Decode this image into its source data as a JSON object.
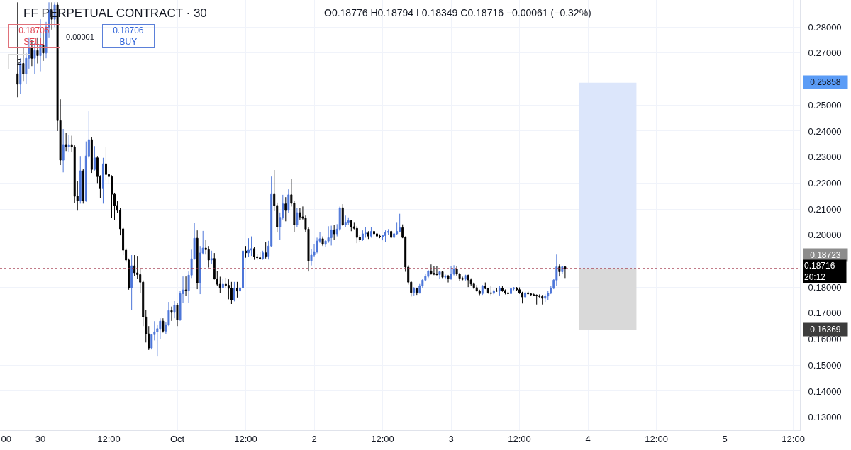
{
  "chart_data": {
    "type": "candlestick",
    "title": "FF PERPETUAL CONTRACT · 30",
    "annotations": [
      "O0.18776 H0.18794 L0.18349 C0.18716 −0.00061 (−0.32%)",
      "0.18705\nSELL",
      "0.00001",
      "0.18706\nBUY",
      "2",
      "0.25858",
      "0.18723",
      "0.16369"
    ],
    "x": [
      "--09-29T20:00",
      "--09-29T20:30",
      "--09-29T21:00",
      "--09-29T21:30",
      "--09-29T22:00",
      "--09-29T22:30",
      "--09-29T23:00",
      "--09-29T23:30",
      "--09-30T00:00",
      "--09-30T00:30",
      "--09-30T01:00",
      "--09-30T01:30",
      "--09-30T02:00",
      "--09-30T02:30",
      "--09-30T03:00",
      "--09-30T03:30",
      "--09-30T04:00",
      "--09-30T04:30",
      "--09-30T05:00",
      "--09-30T05:30",
      "--09-30T06:00",
      "--09-30T06:30",
      "--09-30T07:00",
      "--09-30T07:30",
      "--09-30T08:00",
      "--09-30T08:30",
      "--09-30T09:00",
      "--09-30T09:30",
      "--09-30T10:00",
      "--09-30T10:30",
      "--09-30T11:00",
      "--09-30T11:30",
      "--09-30T12:00",
      "--09-30T12:30",
      "--09-30T13:00",
      "--09-30T13:30",
      "--09-30T14:00",
      "--09-30T14:30",
      "--09-30T15:00",
      "--09-30T15:30",
      "--09-30T16:00",
      "--09-30T16:30",
      "--09-30T17:00",
      "--09-30T17:30",
      "--09-30T18:00",
      "--09-30T18:30",
      "--09-30T19:00",
      "--09-30T19:30",
      "--09-30T20:00",
      "--09-30T20:30",
      "--09-30T21:00",
      "--09-30T21:30",
      "--09-30T22:00",
      "--09-30T22:30",
      "--09-30T23:00",
      "--09-30T23:30",
      "--10-01T00:00",
      "--10-01T00:30",
      "--10-01T01:00",
      "--10-01T01:30",
      "--10-01T02:00",
      "--10-01T02:30",
      "--10-01T03:00",
      "--10-01T03:30",
      "--10-01T04:00",
      "--10-01T04:30",
      "--10-01T05:00",
      "--10-01T05:30",
      "--10-01T06:00",
      "--10-01T06:30",
      "--10-01T07:00",
      "--10-01T07:30",
      "--10-01T08:00",
      "--10-01T08:30",
      "--10-01T09:00",
      "--10-01T09:30",
      "--10-01T10:00",
      "--10-01T10:30",
      "--10-01T11:00",
      "--10-01T11:30",
      "--10-01T12:00",
      "--10-01T12:30",
      "--10-01T13:00",
      "--10-01T13:30",
      "--10-01T14:00",
      "--10-01T14:30",
      "--10-01T15:00",
      "--10-01T15:30",
      "--10-01T16:00",
      "--10-01T16:30",
      "--10-01T17:00",
      "--10-01T17:30",
      "--10-01T18:00",
      "--10-01T18:30",
      "--10-01T19:00",
      "--10-01T19:30",
      "--10-01T20:00",
      "--10-01T20:30",
      "--10-01T21:00",
      "--10-01T21:30",
      "--10-01T22:00",
      "--10-01T22:30",
      "--10-01T23:00",
      "--10-01T23:30",
      "--10-02T00:00",
      "--10-02T00:30",
      "--10-02T01:00",
      "--10-02T01:30",
      "--10-02T02:00",
      "--10-02T02:30",
      "--10-02T03:00",
      "--10-02T03:30",
      "--10-02T04:00",
      "--10-02T04:30",
      "--10-02T05:00",
      "--10-02T05:30",
      "--10-02T06:00",
      "--10-02T06:30",
      "--10-02T07:00",
      "--10-02T07:30",
      "--10-02T08:00",
      "--10-02T08:30",
      "--10-02T09:00",
      "--10-02T09:30",
      "--10-02T10:00",
      "--10-02T10:30",
      "--10-02T11:00",
      "--10-02T11:30",
      "--10-02T12:00",
      "--10-02T12:30",
      "--10-02T13:00",
      "--10-02T13:30",
      "--10-02T14:00",
      "--10-02T14:30",
      "--10-02T15:00",
      "--10-02T15:30",
      "--10-02T16:00",
      "--10-02T16:30",
      "--10-02T17:00",
      "--10-02T17:30",
      "--10-02T18:00",
      "--10-02T18:30",
      "--10-02T19:00",
      "--10-02T19:30",
      "--10-02T20:00",
      "--10-02T20:30",
      "--10-02T21:00",
      "--10-02T21:30",
      "--10-02T22:00",
      "--10-02T22:30",
      "--10-02T23:00",
      "--10-02T23:30",
      "--10-03T00:00",
      "--10-03T00:30",
      "--10-03T01:00",
      "--10-03T01:30",
      "--10-03T02:00",
      "--10-03T02:30",
      "--10-03T03:00",
      "--10-03T03:30",
      "--10-03T04:00",
      "--10-03T04:30",
      "--10-03T05:00",
      "--10-03T05:30",
      "--10-03T06:00",
      "--10-03T06:30",
      "--10-03T07:00",
      "--10-03T07:30",
      "--10-03T08:00",
      "--10-03T08:30",
      "--10-03T09:00",
      "--10-03T09:30",
      "--10-03T10:00",
      "--10-03T10:30",
      "--10-03T11:00",
      "--10-03T11:30",
      "--10-03T12:00",
      "--10-03T12:30",
      "--10-03T13:00",
      "--10-03T13:30",
      "--10-03T14:00",
      "--10-03T14:30",
      "--10-03T15:00",
      "--10-03T15:30",
      "--10-03T16:00",
      "--10-03T16:30",
      "--10-03T17:00",
      "--10-03T17:30",
      "--10-03T18:00",
      "--10-03T18:30",
      "--10-03T19:00",
      "--10-03T19:30",
      "--10-03T20:00"
    ],
    "ohlc": [
      [
        0.262,
        0.2895,
        0.253,
        0.258
      ],
      [
        0.258,
        0.268,
        0.2544,
        0.266
      ],
      [
        0.266,
        0.272,
        0.259,
        0.262
      ],
      [
        0.262,
        0.27,
        0.258,
        0.268
      ],
      [
        0.268,
        0.276,
        0.264,
        0.272
      ],
      [
        0.272,
        0.275,
        0.265,
        0.268
      ],
      [
        0.268,
        0.274,
        0.262,
        0.271
      ],
      [
        0.271,
        0.276,
        0.266,
        0.269
      ],
      [
        0.269,
        0.283,
        0.263,
        0.273
      ],
      [
        0.273,
        0.278,
        0.267,
        0.27
      ],
      [
        0.27,
        0.282,
        0.268,
        0.28
      ],
      [
        0.28,
        0.2895,
        0.276,
        0.2865
      ],
      [
        0.2865,
        0.2895,
        0.279,
        0.283
      ],
      [
        0.283,
        0.2895,
        0.28,
        0.2885
      ],
      [
        0.2885,
        0.2895,
        0.24,
        0.244
      ],
      [
        0.244,
        0.2522,
        0.2269,
        0.2288
      ],
      [
        0.2288,
        0.2408,
        0.2241,
        0.2348
      ],
      [
        0.2348,
        0.2392,
        0.2323,
        0.234
      ],
      [
        0.234,
        0.2385,
        0.2318,
        0.2348
      ],
      [
        0.2348,
        0.2382,
        0.2318,
        0.2339
      ],
      [
        0.2339,
        0.2345,
        0.2124,
        0.2149
      ],
      [
        0.2149,
        0.2209,
        0.2094,
        0.2133
      ],
      [
        0.2133,
        0.2304,
        0.2121,
        0.2247
      ],
      [
        0.2247,
        0.2254,
        0.2121,
        0.2133
      ],
      [
        0.2133,
        0.236,
        0.2128,
        0.2304
      ],
      [
        0.2304,
        0.2476,
        0.2295,
        0.2367
      ],
      [
        0.2367,
        0.2378,
        0.2239,
        0.2252
      ],
      [
        0.2252,
        0.2342,
        0.2248,
        0.2297
      ],
      [
        0.2297,
        0.2304,
        0.22,
        0.2225
      ],
      [
        0.2225,
        0.223,
        0.2141,
        0.2181
      ],
      [
        0.2181,
        0.2297,
        0.2121,
        0.2274
      ],
      [
        0.2274,
        0.234,
        0.2211,
        0.2233
      ],
      [
        0.2233,
        0.2265,
        0.2196,
        0.2225
      ],
      [
        0.2225,
        0.223,
        0.2067,
        0.2157
      ],
      [
        0.2157,
        0.2163,
        0.2058,
        0.2114
      ],
      [
        0.2114,
        0.213,
        0.2085,
        0.2095
      ],
      [
        0.2095,
        0.2103,
        0.1999,
        0.2024
      ],
      [
        0.2024,
        0.2031,
        0.1923,
        0.1942
      ],
      [
        0.1942,
        0.195,
        0.1895,
        0.1904
      ],
      [
        0.1904,
        0.191,
        0.179,
        0.1798
      ],
      [
        0.1798,
        0.1923,
        0.1713,
        0.1882
      ],
      [
        0.1882,
        0.1923,
        0.1842,
        0.1855
      ],
      [
        0.1855,
        0.192,
        0.1833,
        0.1848
      ],
      [
        0.1848,
        0.187,
        0.1778,
        0.1819
      ],
      [
        0.1819,
        0.1826,
        0.165,
        0.1685
      ],
      [
        0.1685,
        0.1713,
        0.1587,
        0.162
      ],
      [
        0.162,
        0.165,
        0.1558,
        0.1566
      ],
      [
        0.1566,
        0.162,
        0.156,
        0.1617
      ],
      [
        0.1617,
        0.1669,
        0.1595,
        0.1628
      ],
      [
        0.1628,
        0.1655,
        0.1533,
        0.164
      ],
      [
        0.164,
        0.168,
        0.16,
        0.1669
      ],
      [
        0.1669,
        0.168,
        0.1625,
        0.1631
      ],
      [
        0.1631,
        0.1664,
        0.162,
        0.1655
      ],
      [
        0.1655,
        0.1743,
        0.165,
        0.171
      ],
      [
        0.171,
        0.1725,
        0.167,
        0.1705
      ],
      [
        0.1705,
        0.1746,
        0.168,
        0.1731
      ],
      [
        0.1731,
        0.174,
        0.165,
        0.1674
      ],
      [
        0.1674,
        0.1786,
        0.167,
        0.1775
      ],
      [
        0.1775,
        0.1841,
        0.174,
        0.1789
      ],
      [
        0.1789,
        0.1841,
        0.1765,
        0.1786
      ],
      [
        0.1786,
        0.186,
        0.174,
        0.1846
      ],
      [
        0.1846,
        0.1944,
        0.1835,
        0.1909
      ],
      [
        0.1909,
        0.2048,
        0.1905,
        0.1988
      ],
      [
        0.1988,
        0.2018,
        0.1792,
        0.1816
      ],
      [
        0.1816,
        0.1958,
        0.1773,
        0.1931
      ],
      [
        0.1931,
        0.2016,
        0.1925,
        0.195
      ],
      [
        0.195,
        0.1983,
        0.1925,
        0.1944
      ],
      [
        0.1944,
        0.1958,
        0.1875,
        0.1904
      ],
      [
        0.1904,
        0.194,
        0.189,
        0.191
      ],
      [
        0.191,
        0.1931,
        0.1829,
        0.1832
      ],
      [
        0.1832,
        0.1862,
        0.1805,
        0.1811
      ],
      [
        0.1811,
        0.184,
        0.1778,
        0.1797
      ],
      [
        0.1797,
        0.1832,
        0.1795,
        0.1811
      ],
      [
        0.1811,
        0.1836,
        0.1795,
        0.1807
      ],
      [
        0.1807,
        0.183,
        0.1753,
        0.1795
      ],
      [
        0.1795,
        0.182,
        0.1735,
        0.1751
      ],
      [
        0.1751,
        0.182,
        0.1745,
        0.1795
      ],
      [
        0.1795,
        0.182,
        0.176,
        0.1785
      ],
      [
        0.1785,
        0.1815,
        0.175,
        0.1797
      ],
      [
        0.1797,
        0.1988,
        0.1792,
        0.1939
      ],
      [
        0.1939,
        0.1958,
        0.1913,
        0.1932
      ],
      [
        0.1932,
        0.1988,
        0.1915,
        0.1942
      ],
      [
        0.1942,
        0.1995,
        0.192,
        0.1948
      ],
      [
        0.1948,
        0.1953,
        0.1905,
        0.1917
      ],
      [
        0.1917,
        0.1927,
        0.1905,
        0.1913
      ],
      [
        0.1913,
        0.1935,
        0.1905,
        0.1908
      ],
      [
        0.1908,
        0.194,
        0.1905,
        0.1932
      ],
      [
        0.1932,
        0.1972,
        0.191,
        0.1919
      ],
      [
        0.1919,
        0.1978,
        0.1906,
        0.1958
      ],
      [
        0.1958,
        0.2225,
        0.1955,
        0.2157
      ],
      [
        0.2157,
        0.225,
        0.2092,
        0.2114
      ],
      [
        0.2114,
        0.2125,
        0.201,
        0.2032
      ],
      [
        0.2032,
        0.2087,
        0.1983,
        0.2068
      ],
      [
        0.2068,
        0.2155,
        0.206,
        0.212
      ],
      [
        0.212,
        0.2146,
        0.2053,
        0.2095
      ],
      [
        0.2095,
        0.2176,
        0.2085,
        0.2155
      ],
      [
        0.2155,
        0.2217,
        0.211,
        0.2122
      ],
      [
        0.2122,
        0.213,
        0.2013,
        0.204
      ],
      [
        0.204,
        0.2104,
        0.203,
        0.2086
      ],
      [
        0.2086,
        0.2104,
        0.2058,
        0.207
      ],
      [
        0.207,
        0.211,
        0.206,
        0.2065
      ],
      [
        0.2065,
        0.2075,
        0.2013,
        0.2023
      ],
      [
        0.2023,
        0.203,
        0.186,
        0.1901
      ],
      [
        0.1901,
        0.1945,
        0.1883,
        0.1923
      ],
      [
        0.1923,
        0.1965,
        0.1915,
        0.1936
      ],
      [
        0.1936,
        0.199,
        0.193,
        0.1977
      ],
      [
        0.1977,
        0.2013,
        0.197,
        0.1986
      ],
      [
        0.1986,
        0.1995,
        0.1958,
        0.1964
      ],
      [
        0.1964,
        0.1982,
        0.1955,
        0.1977
      ],
      [
        0.1977,
        0.2034,
        0.197,
        0.199
      ],
      [
        0.199,
        0.2036,
        0.196,
        0.202
      ],
      [
        0.202,
        0.204,
        0.1983,
        0.2005
      ],
      [
        0.2005,
        0.2042,
        0.1995,
        0.2023
      ],
      [
        0.2023,
        0.211,
        0.2015,
        0.2105
      ],
      [
        0.2105,
        0.2119,
        0.2035,
        0.204
      ],
      [
        0.204,
        0.2075,
        0.2032,
        0.205
      ],
      [
        0.205,
        0.2068,
        0.204,
        0.2055
      ],
      [
        0.2055,
        0.2058,
        0.2015,
        0.2032
      ],
      [
        0.2032,
        0.205,
        0.2022,
        0.2026
      ],
      [
        0.2026,
        0.2035,
        0.1969,
        0.1991
      ],
      [
        0.1991,
        0.2,
        0.1975,
        0.1982
      ],
      [
        0.1982,
        0.2018,
        0.1978,
        0.2005
      ],
      [
        0.2005,
        0.203,
        0.199,
        0.2008
      ],
      [
        0.2008,
        0.2015,
        0.1985,
        0.1996
      ],
      [
        0.1996,
        0.2032,
        0.199,
        0.2014
      ],
      [
        0.2014,
        0.202,
        0.199,
        0.2005
      ],
      [
        0.2005,
        0.2012,
        0.1985,
        0.1996
      ],
      [
        0.1996,
        0.2003,
        0.1988,
        0.1993
      ],
      [
        0.1993,
        0.2,
        0.198,
        0.1998
      ],
      [
        0.1998,
        0.2018,
        0.1973,
        0.201
      ],
      [
        0.201,
        0.2023,
        0.2,
        0.2014
      ],
      [
        0.2014,
        0.2018,
        0.1988,
        0.1991
      ],
      [
        0.1991,
        0.2008,
        0.1988,
        0.2005
      ],
      [
        0.2005,
        0.205,
        0.2,
        0.2014
      ],
      [
        0.2014,
        0.2082,
        0.201,
        0.2028
      ],
      [
        0.2028,
        0.2041,
        0.1988,
        0.1991
      ],
      [
        0.1991,
        0.1995,
        0.1859,
        0.1877
      ],
      [
        0.1877,
        0.1885,
        0.181,
        0.1819
      ],
      [
        0.1819,
        0.1825,
        0.1764,
        0.1779
      ],
      [
        0.1779,
        0.18,
        0.1768,
        0.1794
      ],
      [
        0.1794,
        0.1798,
        0.177,
        0.1779
      ],
      [
        0.1779,
        0.1812,
        0.1775,
        0.1805
      ],
      [
        0.1805,
        0.183,
        0.1798,
        0.1827
      ],
      [
        0.1827,
        0.185,
        0.1822,
        0.1841
      ],
      [
        0.1841,
        0.1866,
        0.1835,
        0.1862
      ],
      [
        0.1862,
        0.1887,
        0.1848,
        0.1853
      ],
      [
        0.1853,
        0.188,
        0.1846,
        0.185
      ],
      [
        0.185,
        0.188,
        0.1845,
        0.1848
      ],
      [
        0.1848,
        0.1862,
        0.1832,
        0.1859
      ],
      [
        0.1859,
        0.1862,
        0.1834,
        0.1838
      ],
      [
        0.1838,
        0.1848,
        0.183,
        0.1843
      ],
      [
        0.1843,
        0.1847,
        0.1818,
        0.1832
      ],
      [
        0.1832,
        0.188,
        0.1828,
        0.185
      ],
      [
        0.185,
        0.1884,
        0.1845,
        0.187
      ],
      [
        0.187,
        0.188,
        0.1843,
        0.185
      ],
      [
        0.185,
        0.1855,
        0.1825,
        0.1834
      ],
      [
        0.1834,
        0.184,
        0.1826,
        0.183
      ],
      [
        0.183,
        0.1848,
        0.1825,
        0.1845
      ],
      [
        0.1845,
        0.1848,
        0.18,
        0.1828
      ],
      [
        0.1828,
        0.1834,
        0.1805,
        0.1812
      ],
      [
        0.1812,
        0.1818,
        0.1792,
        0.1798
      ],
      [
        0.1798,
        0.1808,
        0.1783,
        0.1785
      ],
      [
        0.1785,
        0.179,
        0.1769,
        0.1775
      ],
      [
        0.1775,
        0.1808,
        0.177,
        0.1803
      ],
      [
        0.1803,
        0.1818,
        0.1792,
        0.1795
      ],
      [
        0.1795,
        0.1797,
        0.1775,
        0.1778
      ],
      [
        0.1778,
        0.1805,
        0.1769,
        0.1776
      ],
      [
        0.1776,
        0.1791,
        0.1771,
        0.1786
      ],
      [
        0.1786,
        0.1796,
        0.1782,
        0.1785
      ],
      [
        0.1785,
        0.1805,
        0.1768,
        0.1796
      ],
      [
        0.1796,
        0.1803,
        0.1782,
        0.1787
      ],
      [
        0.1787,
        0.1791,
        0.1772,
        0.1778
      ],
      [
        0.1778,
        0.1787,
        0.1768,
        0.1775
      ],
      [
        0.1775,
        0.18,
        0.1768,
        0.1794
      ],
      [
        0.1794,
        0.18,
        0.1788,
        0.1797
      ],
      [
        0.1797,
        0.18,
        0.1786,
        0.179
      ],
      [
        0.179,
        0.1799,
        0.1774,
        0.1778
      ],
      [
        0.1778,
        0.1782,
        0.1737,
        0.1762
      ],
      [
        0.1762,
        0.1783,
        0.1759,
        0.1778
      ],
      [
        0.1778,
        0.1783,
        0.1772,
        0.1774
      ],
      [
        0.1774,
        0.1778,
        0.1768,
        0.1771
      ],
      [
        0.1771,
        0.1775,
        0.1765,
        0.1769
      ],
      [
        0.1769,
        0.1772,
        0.1733,
        0.1767
      ],
      [
        0.1767,
        0.1772,
        0.176,
        0.1764
      ],
      [
        0.1764,
        0.177,
        0.1733,
        0.1757
      ],
      [
        0.1757,
        0.1772,
        0.1743,
        0.1766
      ],
      [
        0.1766,
        0.1785,
        0.175,
        0.1777
      ],
      [
        0.1777,
        0.1803,
        0.1773,
        0.1796
      ],
      [
        0.1796,
        0.1832,
        0.1792,
        0.1827
      ],
      [
        0.1827,
        0.1925,
        0.1805,
        0.1878
      ],
      [
        0.1878,
        0.1887,
        0.1841,
        0.1859
      ],
      [
        0.1859,
        0.1882,
        0.1852,
        0.1878
      ],
      [
        0.18776,
        0.18794,
        0.18349,
        0.18716
      ]
    ],
    "colors": [
      "#000000",
      "#4d76d9",
      "#000000",
      "#4d76d9",
      "#4d76d9",
      "#000000",
      "#4d76d9",
      "#000000",
      "#4d76d9",
      "#000000",
      "#4d76d9",
      "#4d76d9",
      "#000000",
      "#4d76d9",
      "#000000",
      "#000000",
      "#4d76d9",
      "#000000",
      "#4d76d9",
      "#000000",
      "#000000",
      "#000000",
      "#4d76d9",
      "#000000",
      "#4d76d9",
      "#4d76d9",
      "#000000",
      "#4d76d9",
      "#000000",
      "#000000",
      "#4d76d9",
      "#000000",
      "#000000",
      "#000000",
      "#000000",
      "#000000",
      "#000000",
      "#000000",
      "#000000",
      "#000000",
      "#4d76d9",
      "#000000",
      "#000000",
      "#000000",
      "#000000",
      "#000000",
      "#000000",
      "#4d76d9",
      "#4d76d9",
      "#4d76d9",
      "#4d76d9",
      "#000000",
      "#4d76d9",
      "#4d76d9",
      "#000000",
      "#4d76d9",
      "#000000",
      "#4d76d9",
      "#4d76d9",
      "#000000",
      "#4d76d9",
      "#4d76d9",
      "#4d76d9",
      "#000000",
      "#4d76d9",
      "#4d76d9",
      "#000000",
      "#000000",
      "#4d76d9",
      "#000000",
      "#000000",
      "#000000",
      "#4d76d9",
      "#000000",
      "#000000",
      "#000000",
      "#4d76d9",
      "#000000",
      "#4d76d9",
      "#4d76d9",
      "#000000",
      "#4d76d9",
      "#4d76d9",
      "#000000",
      "#000000",
      "#000000",
      "#4d76d9",
      "#000000",
      "#4d76d9",
      "#4d76d9",
      "#000000",
      "#000000",
      "#4d76d9",
      "#4d76d9",
      "#000000",
      "#4d76d9",
      "#000000",
      "#000000",
      "#4d76d9",
      "#000000",
      "#000000",
      "#000000",
      "#000000",
      "#4d76d9",
      "#4d76d9",
      "#4d76d9",
      "#4d76d9",
      "#000000",
      "#4d76d9",
      "#4d76d9",
      "#4d76d9",
      "#000000",
      "#4d76d9",
      "#4d76d9",
      "#000000",
      "#4d76d9",
      "#4d76d9",
      "#000000",
      "#000000",
      "#000000",
      "#000000",
      "#4d76d9",
      "#4d76d9",
      "#000000",
      "#4d76d9",
      "#000000",
      "#000000",
      "#000000",
      "#4d76d9",
      "#4d76d9",
      "#4d76d9",
      "#000000",
      "#4d76d9",
      "#4d76d9",
      "#4d76d9",
      "#000000",
      "#000000",
      "#000000",
      "#000000",
      "#4d76d9",
      "#000000",
      "#4d76d9",
      "#4d76d9",
      "#4d76d9",
      "#4d76d9",
      "#000000",
      "#000000",
      "#000000",
      "#4d76d9",
      "#000000",
      "#4d76d9",
      "#000000",
      "#4d76d9",
      "#4d76d9",
      "#000000",
      "#000000",
      "#000000",
      "#4d76d9",
      "#000000",
      "#000000",
      "#000000",
      "#000000",
      "#000000",
      "#4d76d9",
      "#000000",
      "#000000",
      "#000000",
      "#4d76d9",
      "#000000",
      "#4d76d9",
      "#000000",
      "#000000",
      "#000000",
      "#4d76d9",
      "#4d76d9",
      "#000000",
      "#000000",
      "#000000",
      "#4d76d9",
      "#000000",
      "#000000",
      "#000000",
      "#000000",
      "#000000",
      "#000000",
      "#4d76d9",
      "#4d76d9",
      "#4d76d9",
      "#4d76d9",
      "#4d76d9",
      "#000000",
      "#4d76d9",
      "#000000"
    ],
    "series": [
      {
        "type": "bar",
        "x": [
          "--10-04T03:30",
          "--10-04T03:30"
        ],
        "base": [
          0.18723,
          0.16369
        ],
        "values": [
          0.07135,
          0.02354
        ],
        "colors": [
          "#dce6fb",
          "#d9d9d9"
        ]
      }
    ],
    "ref_lines": [
      {
        "axis": "y",
        "value": 0.18716,
        "label": "0.18716\n20:12",
        "color": "#9c2a3f",
        "line_style": "dotted"
      }
    ],
    "xlim": [
      "--09-29T16:55",
      "--10-05T13:10"
    ],
    "xticks": [
      {
        "value": "--09-29T18:00",
        "label": "00"
      },
      {
        "value": "--09-30T00:00",
        "label": "30"
      },
      {
        "value": "--09-30T12:00",
        "label": "12:00"
      },
      {
        "value": "--10-01T00:00",
        "label": "Oct"
      },
      {
        "value": "--10-01T12:00",
        "label": "12:00"
      },
      {
        "value": "--10-02T00:00",
        "label": "2"
      },
      {
        "value": "--10-02T12:00",
        "label": "12:00"
      },
      {
        "value": "--10-03T00:00",
        "label": "3"
      },
      {
        "value": "--10-03T12:00",
        "label": "12:00"
      },
      {
        "value": "--10-04T00:00",
        "label": "4"
      },
      {
        "value": "--10-04T12:00",
        "label": "12:00"
      },
      {
        "value": "--10-05T00:00",
        "label": "5"
      },
      {
        "value": "--10-05T12:00",
        "label": "12:00"
      }
    ],
    "ylim": [
      0.125,
      0.2904
    ],
    "yticks": [
      {
        "value": 0.13,
        "label": "0.13000"
      },
      {
        "value": 0.14,
        "label": "0.14000"
      },
      {
        "value": 0.15,
        "label": "0.15000"
      },
      {
        "value": 0.16,
        "label": "0.16000"
      },
      {
        "value": 0.17,
        "label": "0.17000"
      },
      {
        "value": 0.18,
        "label": "0.18000"
      },
      {
        "value": 0.19,
        "label": null
      },
      {
        "value": 0.2,
        "label": "0.20000"
      },
      {
        "value": 0.21,
        "label": "0.21000"
      },
      {
        "value": 0.22,
        "label": "0.22000"
      },
      {
        "value": 0.23,
        "label": "0.23000"
      },
      {
        "value": 0.24,
        "label": "0.24000"
      },
      {
        "value": 0.25,
        "label": "0.25000"
      },
      {
        "value": 0.26,
        "label": null
      },
      {
        "value": 0.27,
        "label": "0.27000"
      },
      {
        "value": 0.28,
        "label": "0.28000"
      }
    ],
    "grid": true
  }
}
